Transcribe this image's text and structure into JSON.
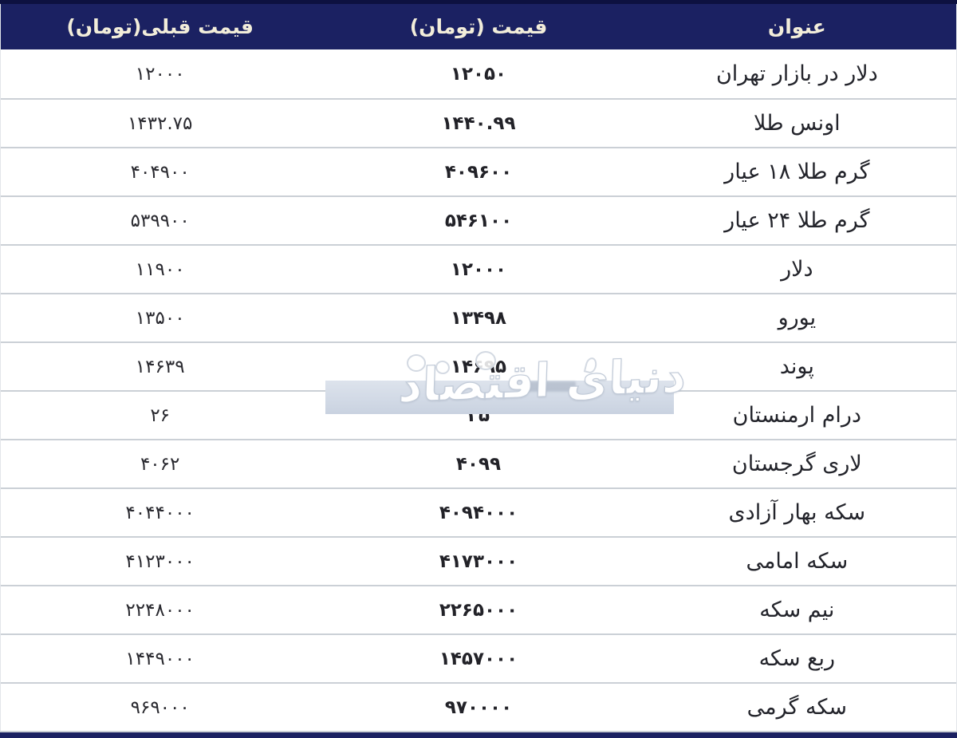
{
  "colors": {
    "header_bg": "#1b2162",
    "header_text": "#f2edda",
    "top_strip": "#0d1140",
    "row_separator": "#cbd0d6",
    "body_text": "#26262c",
    "watermark_band": "#d2dae6",
    "watermark_text_color": "#ffffff"
  },
  "table": {
    "columns": [
      {
        "key": "title",
        "label": "عنوان"
      },
      {
        "key": "price",
        "label": "قیمت (تومان)"
      },
      {
        "key": "prev",
        "label": "قیمت قبلی(تومان)"
      }
    ],
    "rows": [
      {
        "title": "دلار در بازار تهران",
        "price": "۱۲۰۵۰",
        "prev": "۱۲۰۰۰"
      },
      {
        "title": "اونس طلا",
        "price": "۱۴۴۰.۹۹",
        "prev": "۱۴۳۲.۷۵"
      },
      {
        "title": "گرم طلا ۱۸ عیار",
        "price": "۴۰۹۶۰۰",
        "prev": "۴۰۴۹۰۰"
      },
      {
        "title": "گرم طلا ۲۴ عیار",
        "price": "۵۴۶۱۰۰",
        "prev": "۵۳۹۹۰۰"
      },
      {
        "title": "دلار",
        "price": "۱۲۰۰۰",
        "prev": "۱۱۹۰۰"
      },
      {
        "title": "یورو",
        "price": "۱۳۴۹۸",
        "prev": "۱۳۵۰۰"
      },
      {
        "title": "پوند",
        "price": "۱۴۶۹۵",
        "prev": "۱۴۶۳۹"
      },
      {
        "title": "درام ارمنستان",
        "price": "۲۵",
        "prev": "۲۶"
      },
      {
        "title": "لاری گرجستان",
        "price": "۴۰۹۹",
        "prev": "۴۰۶۲"
      },
      {
        "title": "سکه بهار آزادی",
        "price": "۴۰۹۴۰۰۰",
        "prev": "۴۰۴۴۰۰۰"
      },
      {
        "title": "سکه امامی",
        "price": "۴۱۷۳۰۰۰",
        "prev": "۴۱۲۳۰۰۰"
      },
      {
        "title": "نیم سکه",
        "price": "۲۲۶۵۰۰۰",
        "prev": "۲۲۴۸۰۰۰"
      },
      {
        "title": "ربع سکه",
        "price": "۱۴۵۷۰۰۰",
        "prev": "۱۴۴۹۰۰۰"
      },
      {
        "title": "سکه گرمی",
        "price": "۹۷۰۰۰۰",
        "prev": "۹۶۹۰۰۰"
      }
    ]
  },
  "watermark": {
    "text": "دنیای اقتصاد"
  }
}
